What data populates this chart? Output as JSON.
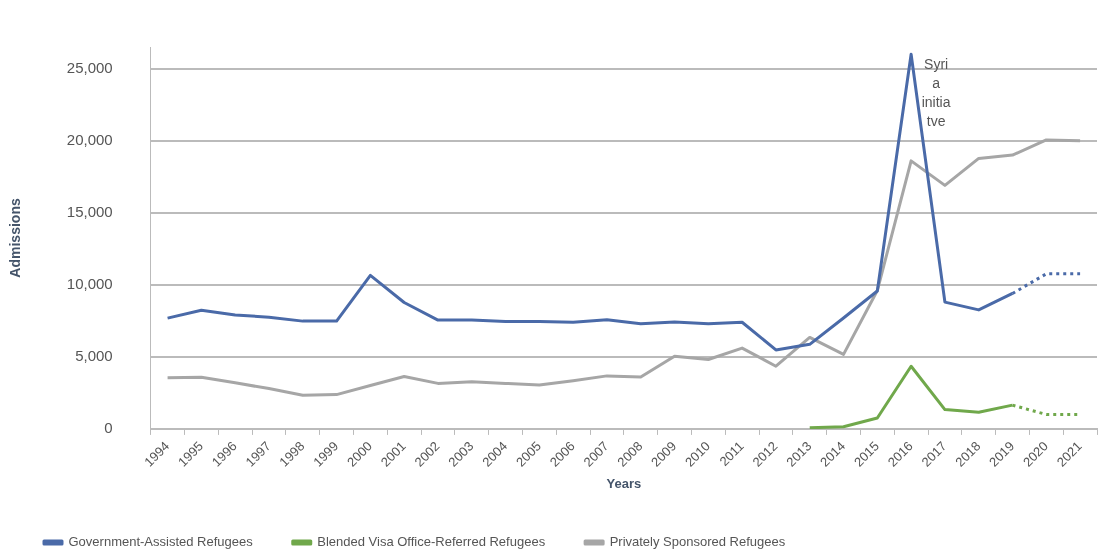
{
  "chart_data": {
    "type": "line",
    "xlabel": "Years",
    "ylabel": "Admissions",
    "categories": [
      "1994",
      "1995",
      "1996",
      "1997",
      "1998",
      "1999",
      "2000",
      "2001",
      "2002",
      "2003",
      "2004",
      "2005",
      "2006",
      "2007",
      "2008",
      "2009",
      "2010",
      "2011",
      "2012",
      "2013",
      "2014",
      "2015",
      "2016",
      "2017",
      "2018",
      "2019",
      "2020",
      "2021"
    ],
    "series": [
      {
        "name": "Government-Assisted Refugees",
        "color": "#4a6aa8",
        "values": [
          7690,
          8230,
          7910,
          7750,
          7480,
          7480,
          10650,
          8770,
          7550,
          7550,
          7450,
          7450,
          7400,
          7570,
          7300,
          7420,
          7300,
          7400,
          5480,
          5870,
          7700,
          9570,
          26000,
          8800,
          8260,
          9400,
          null,
          null
        ]
      },
      {
        "color": "#4a6aa8",
        "line_style": "dotted",
        "values": [
          null,
          null,
          null,
          null,
          null,
          null,
          null,
          null,
          null,
          null,
          null,
          null,
          null,
          null,
          null,
          null,
          null,
          null,
          null,
          null,
          null,
          null,
          null,
          null,
          null,
          9400,
          10760,
          10760
        ]
      },
      {
        "name": "Blended Visa Office-Referred Refugees",
        "color": "#70a84b",
        "values": [
          null,
          null,
          null,
          null,
          null,
          null,
          null,
          null,
          null,
          null,
          null,
          null,
          null,
          null,
          null,
          null,
          null,
          null,
          null,
          80,
          150,
          760,
          4350,
          1340,
          1160,
          1650,
          null,
          null
        ]
      },
      {
        "color": "#70a84b",
        "line_style": "dotted",
        "values": [
          null,
          null,
          null,
          null,
          null,
          null,
          null,
          null,
          null,
          null,
          null,
          null,
          null,
          null,
          null,
          null,
          null,
          null,
          null,
          null,
          null,
          null,
          null,
          null,
          null,
          1650,
          1000,
          1000
        ]
      },
      {
        "name": "Privately Sponsored Refugees",
        "color": "#a6a6a6",
        "values": [
          3550,
          3580,
          3200,
          2800,
          2340,
          2380,
          3010,
          3640,
          3160,
          3280,
          3160,
          3050,
          3350,
          3680,
          3600,
          5040,
          4820,
          5610,
          4350,
          6350,
          5170,
          9600,
          18600,
          16900,
          18770,
          19000,
          20050,
          20000
        ]
      }
    ],
    "ylim": [
      0,
      26500
    ],
    "yticks": [
      {
        "value": 0,
        "label": "0"
      },
      {
        "value": 5000,
        "label": "5,000"
      },
      {
        "value": 10000,
        "label": "10,000"
      },
      {
        "value": 15000,
        "label": "15,000"
      },
      {
        "value": 20000,
        "label": "20,000"
      },
      {
        "value": 25000,
        "label": "25,000"
      }
    ],
    "grid": "y",
    "legend": "bottom",
    "marker": "none",
    "annotations": [
      {
        "text": "Syria initiatve",
        "x": "2016",
        "y": 26000
      }
    ]
  }
}
